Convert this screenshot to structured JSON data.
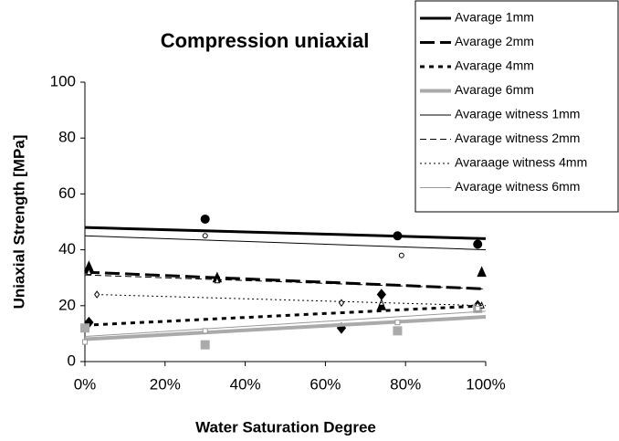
{
  "chart_data": {
    "type": "scatter",
    "title": "Compression uniaxial",
    "x_label": "Water Saturation Degree",
    "y_label": "Uniaxial Strength [MPa]",
    "xlim": [
      0,
      100
    ],
    "xticks": [
      {
        "value": 0,
        "label": "0%"
      },
      {
        "value": 20,
        "label": "20%"
      },
      {
        "value": 40,
        "label": "40%"
      },
      {
        "value": 60,
        "label": "60%"
      },
      {
        "value": 80,
        "label": "80%"
      },
      {
        "value": 100,
        "label": "100%"
      }
    ],
    "ylim": [
      0,
      100
    ],
    "yticks": [
      0,
      20,
      40,
      60,
      80,
      100
    ],
    "legend": "top-right",
    "series": [
      {
        "name": "Avarage 1mm",
        "color": "#000000",
        "width": 3,
        "dash": "solid",
        "marker": "circle",
        "filled": true,
        "x": [
          30,
          78,
          98
        ],
        "values": [
          51,
          45,
          42
        ],
        "trend_x": [
          0,
          100
        ],
        "trend_y": [
          48,
          44
        ]
      },
      {
        "name": "Avarage 2mm",
        "color": "#000000",
        "width": 3,
        "dash": "long",
        "marker": "triangle",
        "filled": true,
        "x": [
          1,
          33,
          74,
          99
        ],
        "values": [
          34,
          30,
          20,
          32
        ],
        "trend_x": [
          0,
          100
        ],
        "trend_y": [
          32,
          26
        ]
      },
      {
        "name": "Avarage 4mm",
        "color": "#000000",
        "width": 3,
        "dash": "short",
        "marker": "diamond",
        "filled": true,
        "x": [
          1,
          64,
          74,
          98
        ],
        "values": [
          14,
          12,
          24,
          20
        ],
        "trend_x": [
          0,
          100
        ],
        "trend_y": [
          13,
          20
        ]
      },
      {
        "name": "Avarage 6mm",
        "color": "#aaaaaa",
        "width": 4,
        "dash": "solid",
        "marker": "square",
        "filled": true,
        "x": [
          0,
          30,
          78,
          98
        ],
        "values": [
          12,
          6,
          11,
          19
        ],
        "trend_x": [
          0,
          100
        ],
        "trend_y": [
          8,
          16
        ]
      },
      {
        "name": "Avarage witness 1mm",
        "color": "#000000",
        "width": 1,
        "dash": "solid",
        "marker": "circle",
        "filled": false,
        "x": [
          30,
          79
        ],
        "values": [
          45,
          38
        ],
        "trend_x": [
          0,
          100
        ],
        "trend_y": [
          45,
          40
        ]
      },
      {
        "name": "Avarage witness 2mm",
        "color": "#000000",
        "width": 1,
        "dash": "medium",
        "marker": "triangle",
        "filled": false,
        "x": [
          1,
          33,
          74,
          99
        ],
        "values": [
          32,
          29,
          21,
          20
        ],
        "trend_x": [
          0,
          100
        ],
        "trend_y": [
          31,
          26
        ]
      },
      {
        "name": "Avaraage witness 4mm",
        "color": "#000000",
        "width": 1,
        "dash": "dot",
        "marker": "diamond",
        "filled": false,
        "x": [
          3,
          64,
          98
        ],
        "values": [
          24,
          21,
          20
        ],
        "trend_x": [
          3,
          100
        ],
        "trend_y": [
          24,
          20
        ]
      },
      {
        "name": "Avarage witness 6mm",
        "color": "#999999",
        "width": 1,
        "dash": "solid",
        "marker": "square",
        "filled": false,
        "x": [
          0,
          30,
          78,
          98
        ],
        "values": [
          7,
          11,
          14,
          19
        ],
        "trend_x": [
          0,
          100
        ],
        "trend_y": [
          9,
          18
        ]
      }
    ]
  }
}
